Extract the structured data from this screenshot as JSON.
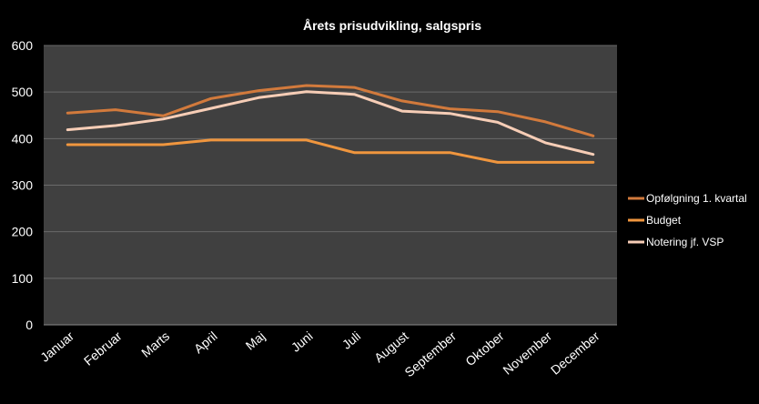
{
  "chart_data": {
    "type": "line",
    "title": "Årets prisudvikling, salgspris",
    "xlabel": "",
    "ylabel": "",
    "categories": [
      "Januar",
      "Februar",
      "Marts",
      "April",
      "Maj",
      "Juni",
      "Juli",
      "August",
      "September",
      "Oktober",
      "November",
      "December"
    ],
    "ylim": [
      0,
      600
    ],
    "yticks": [
      0,
      100,
      200,
      300,
      400,
      500,
      600
    ],
    "grid": true,
    "legend_position": "right",
    "series": [
      {
        "name": "Opfølgning 1. kvartal",
        "color": "#d27a3c",
        "values": [
          455,
          462,
          449,
          486,
          503,
          514,
          510,
          481,
          464,
          458,
          436,
          406
        ]
      },
      {
        "name": "Budget",
        "color": "#f0963e",
        "values": [
          387,
          387,
          387,
          397,
          397,
          397,
          370,
          370,
          370,
          349,
          349,
          349
        ]
      },
      {
        "name": "Notering jf. VSP",
        "color": "#f6cdb6",
        "values": [
          419,
          428,
          442,
          465,
          488,
          501,
          495,
          459,
          454,
          435,
          391,
          366
        ]
      }
    ]
  },
  "colors": {
    "background": "#000000",
    "plot_area": "#404040",
    "gridline": "#6a6a6a",
    "text": "#ffffff"
  }
}
